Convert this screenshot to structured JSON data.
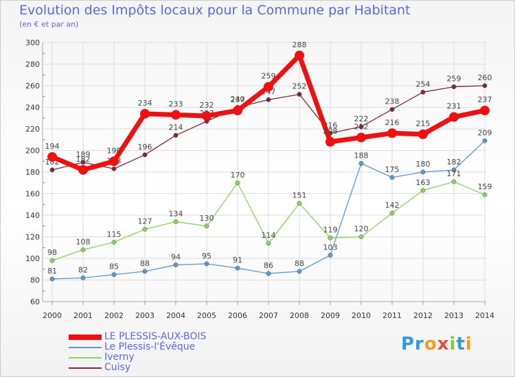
{
  "title": "Evolution des Impôts locaux pour la Commune par Habitant",
  "subtitle": "(en € et par an)",
  "logo_text": "Proxiti",
  "chart_data": {
    "type": "line",
    "x": [
      "2000",
      "2001",
      "2002",
      "2003",
      "2004",
      "2005",
      "2006",
      "2007",
      "2008",
      "2009",
      "2010",
      "2011",
      "2012",
      "2013",
      "2014"
    ],
    "ylim": [
      60,
      300
    ],
    "yticks": [
      60,
      80,
      100,
      120,
      140,
      160,
      180,
      200,
      220,
      240,
      260,
      280,
      300
    ],
    "grid": true,
    "legend_position": "bottom-left",
    "series": [
      {
        "name": "Cuisy",
        "color": "#7a2a38",
        "values": [
          182,
          189,
          183,
          196,
          214,
          227,
          240,
          247,
          252,
          216,
          222,
          238,
          254,
          259,
          260
        ]
      },
      {
        "name": "Le Plessis-l'Évêque",
        "color": "#5a98d0",
        "values": [
          81,
          82,
          85,
          88,
          94,
          95,
          91,
          86,
          88,
          103,
          188,
          175,
          180,
          182,
          209
        ]
      },
      {
        "name": "Iverny",
        "color": "#8ed060",
        "values": [
          98,
          108,
          115,
          127,
          134,
          130,
          170,
          114,
          151,
          119,
          120,
          142,
          163,
          171,
          159
        ]
      },
      {
        "name": "LE PLESSIS-AUX-BOIS",
        "color": "#ee1111",
        "values": [
          194,
          182,
          190,
          234,
          233,
          232,
          237,
          259,
          288,
          208,
          212,
          216,
          215,
          231,
          237
        ]
      }
    ]
  }
}
